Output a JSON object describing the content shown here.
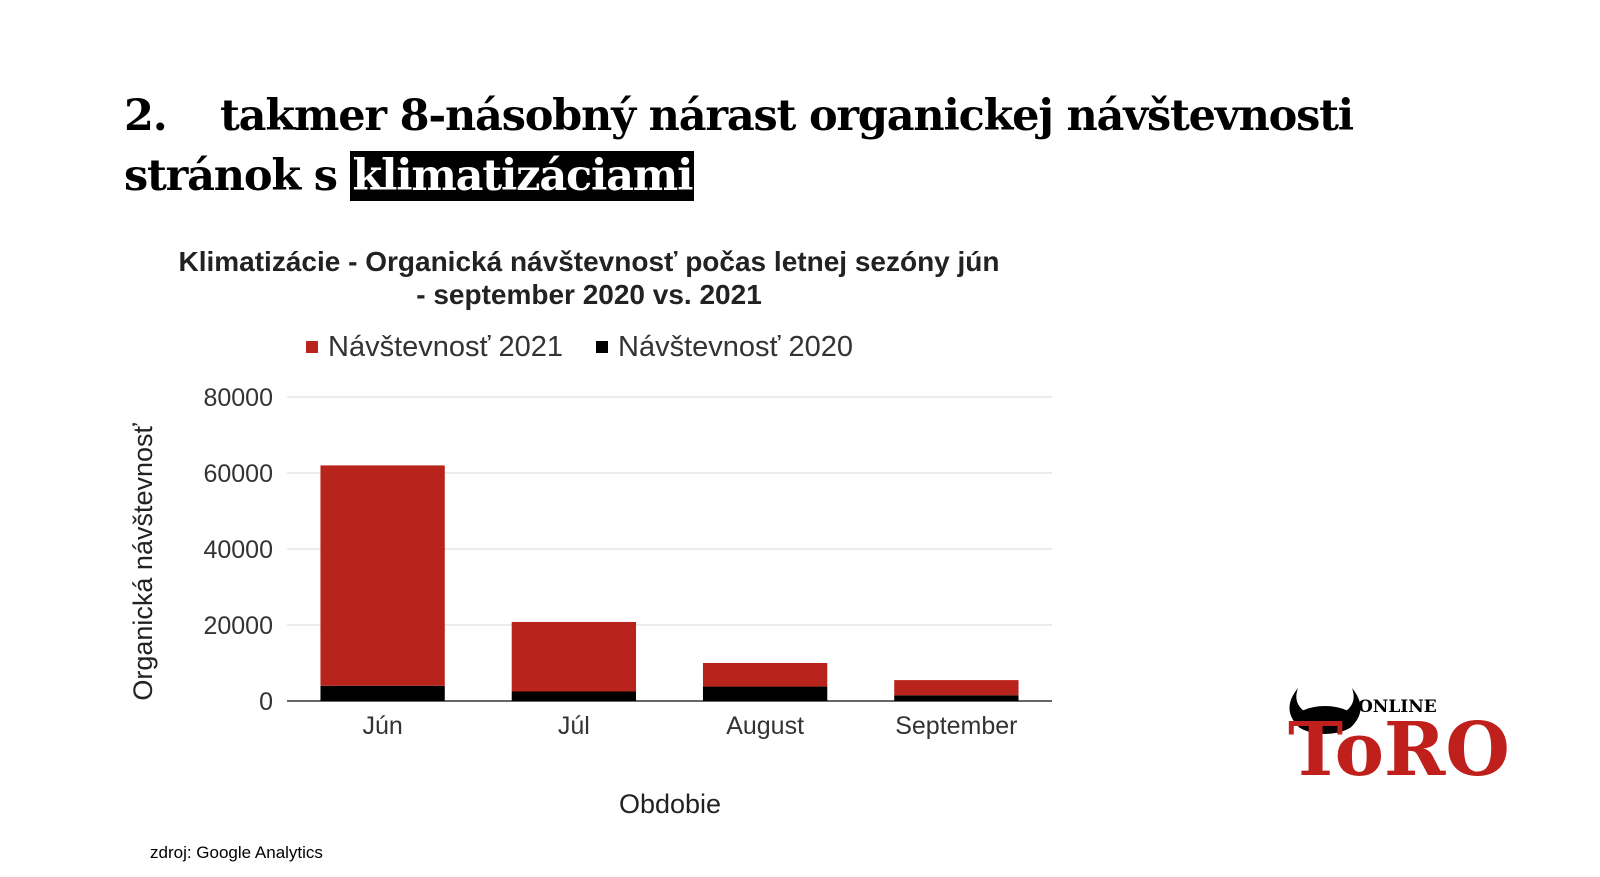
{
  "slide": {
    "title_num": "2.",
    "title_line1": "takmer 8-násobný nárast organickej návštevnosti",
    "title_line2_pre": "stránok s ",
    "title_highlight": "klimatizáciami",
    "source": "zdroj: Google Analytics"
  },
  "logo": {
    "text_small": "ONLINE",
    "text_big": "ToRO"
  },
  "colors": {
    "series_2021": "#b8241c",
    "series_2020": "#000000",
    "grid": "#d9d9d9",
    "logo_red": "#c0201c"
  },
  "chart_data": {
    "type": "bar",
    "stacked": true,
    "title_line1": "Klimatizácie - Organická návštevnosť počas letnej sezóny jún",
    "title_line2": "- september 2020 vs. 2021",
    "xlabel": "Obdobie",
    "ylabel": "Organická návštevnosť",
    "categories": [
      "Jún",
      "Júl",
      "August",
      "September"
    ],
    "series": [
      {
        "name": "Návštevnosť 2020",
        "values": [
          4000,
          2500,
          3800,
          1500
        ]
      },
      {
        "name": "Návštevnosť 2021",
        "values": [
          58000,
          18300,
          6200,
          4000
        ]
      }
    ],
    "legend_order": [
      "Návštevnosť 2021",
      "Návštevnosť 2020"
    ],
    "yticks": [
      "80000",
      "60000",
      "40000",
      "20000",
      "0"
    ],
    "ylim": [
      0,
      80000
    ],
    "grid": true,
    "legend_position": "top"
  }
}
